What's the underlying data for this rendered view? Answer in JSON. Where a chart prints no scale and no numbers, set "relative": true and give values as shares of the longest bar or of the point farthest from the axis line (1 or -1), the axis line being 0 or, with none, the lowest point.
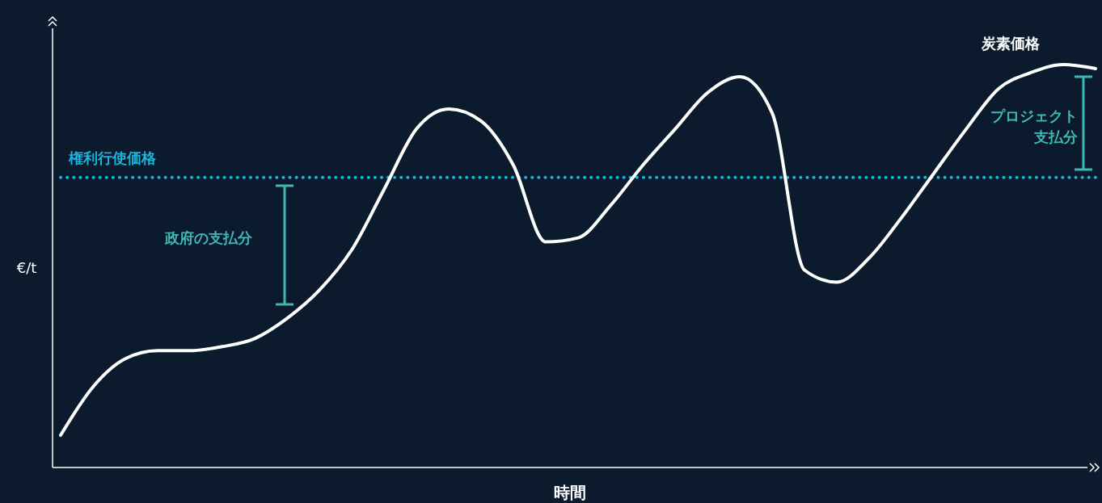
{
  "chart_data": {
    "type": "line",
    "relative": true,
    "xlabel": "時間",
    "ylabel": "€/t",
    "categories": [
      null,
      null,
      null,
      null,
      null,
      null,
      null,
      null,
      null,
      null,
      null,
      null,
      null,
      null,
      null,
      null,
      null,
      null,
      null,
      null,
      null,
      null,
      null,
      null,
      null,
      null,
      null,
      null,
      null,
      null,
      null,
      null,
      null
    ],
    "series": [
      {
        "name": "炭素価格",
        "color": "#ffffff",
        "values": [
          0.08,
          0.2,
          0.27,
          0.29,
          0.29,
          0.3,
          0.32,
          0.37,
          0.44,
          0.54,
          0.69,
          0.84,
          0.89,
          0.86,
          0.75,
          0.56,
          0.57,
          0.65,
          0.75,
          0.84,
          0.93,
          0.97,
          0.88,
          0.49,
          0.46,
          0.52,
          0.62,
          0.73,
          0.84,
          0.94,
          0.98,
          1,
          0.99
        ]
      }
    ],
    "ref_lines": [
      {
        "axis": "y",
        "value": 0.72,
        "label": "権利行使価格",
        "color": "#1ab4dc",
        "line_style": "dotted"
      }
    ],
    "annotations": [
      "政府の支払分",
      "プロジェクト支払分"
    ],
    "marker": "none",
    "line_style": "solid"
  }
}
